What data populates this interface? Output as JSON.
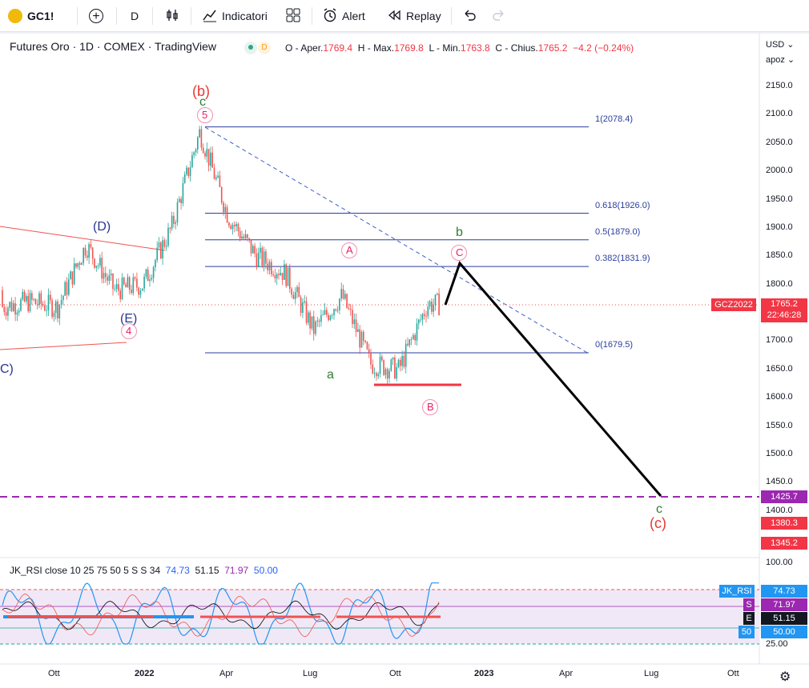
{
  "toolbar": {
    "symbol": "GC1!",
    "interval": "D",
    "indicators_label": "Indicatori",
    "alert_label": "Alert",
    "replay_label": "Replay"
  },
  "legend": {
    "title": "Futures Oro · 1D · COMEX · TradingView",
    "badge_d": "D",
    "open_label": "O - Aper.",
    "open": "1769.4",
    "high_label": "H - Max.",
    "high": "1769.8",
    "low_label": "L - Min.",
    "low": "1763.8",
    "close_label": "C - Chius.",
    "close": "1765.2",
    "change": "−4.2 (−0.24%)"
  },
  "right_top": {
    "currency": "USD",
    "scale": "apoz"
  },
  "price_axis": [
    "2150.0",
    "2100.0",
    "2050.0",
    "2000.0",
    "1950.0",
    "1900.0",
    "1850.0",
    "1800.0",
    "1750.0",
    "1700.0",
    "1650.0",
    "1600.0",
    "1550.0",
    "1500.0",
    "1450.0",
    "1400.0"
  ],
  "price_tags": {
    "symbol_tag": "GCZ2022",
    "last": "1765.2",
    "countdown": "22:46:28",
    "t1": "1425.7",
    "t2": "1380.3",
    "t3": "1345.2"
  },
  "time_axis": [
    "Ott",
    "2022",
    "Apr",
    "Lug",
    "Ott",
    "2023",
    "Apr",
    "Lug",
    "Ott"
  ],
  "fib": [
    "1(2078.4)",
    "0.618(1926.0)",
    "0.5(1879.0)",
    "0.382(1831.9)",
    "0(1679.5)"
  ],
  "waves": {
    "b_paren": "(b)",
    "c_small": "c",
    "five": "5",
    "D": "(D)",
    "E": "(E)",
    "four": "4",
    "C_left": "C)",
    "A": "A",
    "B": "B",
    "C": "C",
    "a": "a",
    "b": "b",
    "c_bottom": "c",
    "c_paren": "(c)"
  },
  "rsi": {
    "title": "JK_RSI close 10 25 75 50 5 S S 34",
    "v1": "74.73",
    "v2": "51.15",
    "v3": "71.97",
    "v4": "50.00",
    "axis": [
      "100.00",
      "25.00"
    ],
    "tag_rsi": "JK_RSI",
    "tag_rsi_v": "74.73",
    "tag_s": "S",
    "tag_s_v": "71.97",
    "tag_e": "E",
    "tag_e_v": "51.15",
    "tag_50": "50",
    "tag_50_v": "50.00"
  },
  "colors": {
    "up": "#26a69a",
    "down": "#ef5350",
    "fib": "#2a3f9e",
    "target": "#9c27b0"
  },
  "chart_data": {
    "type": "candlestick",
    "title": "Futures Oro · 1D · COMEX · TradingView",
    "y_range": [
      1380,
      2170
    ],
    "x_range": [
      "2021-07",
      "2023-11"
    ],
    "key_levels": {
      "fib_1": 2078.4,
      "fib_0618": 1926.0,
      "fib_05": 1879.0,
      "fib_0382": 1831.9,
      "fib_0": 1679.5,
      "last": 1765.2,
      "target": 1425.7
    },
    "close_path_approx": [
      {
        "x": "2021-07",
        "y": 1790
      },
      {
        "x": "2021-08",
        "y": 1760
      },
      {
        "x": "2021-09",
        "y": 1770
      },
      {
        "x": "2021-10",
        "y": 1760
      },
      {
        "x": "2021-11",
        "y": 1870
      },
      {
        "x": "2021-12",
        "y": 1790
      },
      {
        "x": "2022-01",
        "y": 1800
      },
      {
        "x": "2022-02",
        "y": 1900
      },
      {
        "x": "2022-03",
        "y": 2070
      },
      {
        "x": "2022-04",
        "y": 1920
      },
      {
        "x": "2022-05",
        "y": 1850
      },
      {
        "x": "2022-06",
        "y": 1820
      },
      {
        "x": "2022-07",
        "y": 1720
      },
      {
        "x": "2022-08",
        "y": 1780
      },
      {
        "x": "2022-09",
        "y": 1660
      },
      {
        "x": "2022-10",
        "y": 1650
      },
      {
        "x": "2022-11",
        "y": 1765
      }
    ]
  }
}
